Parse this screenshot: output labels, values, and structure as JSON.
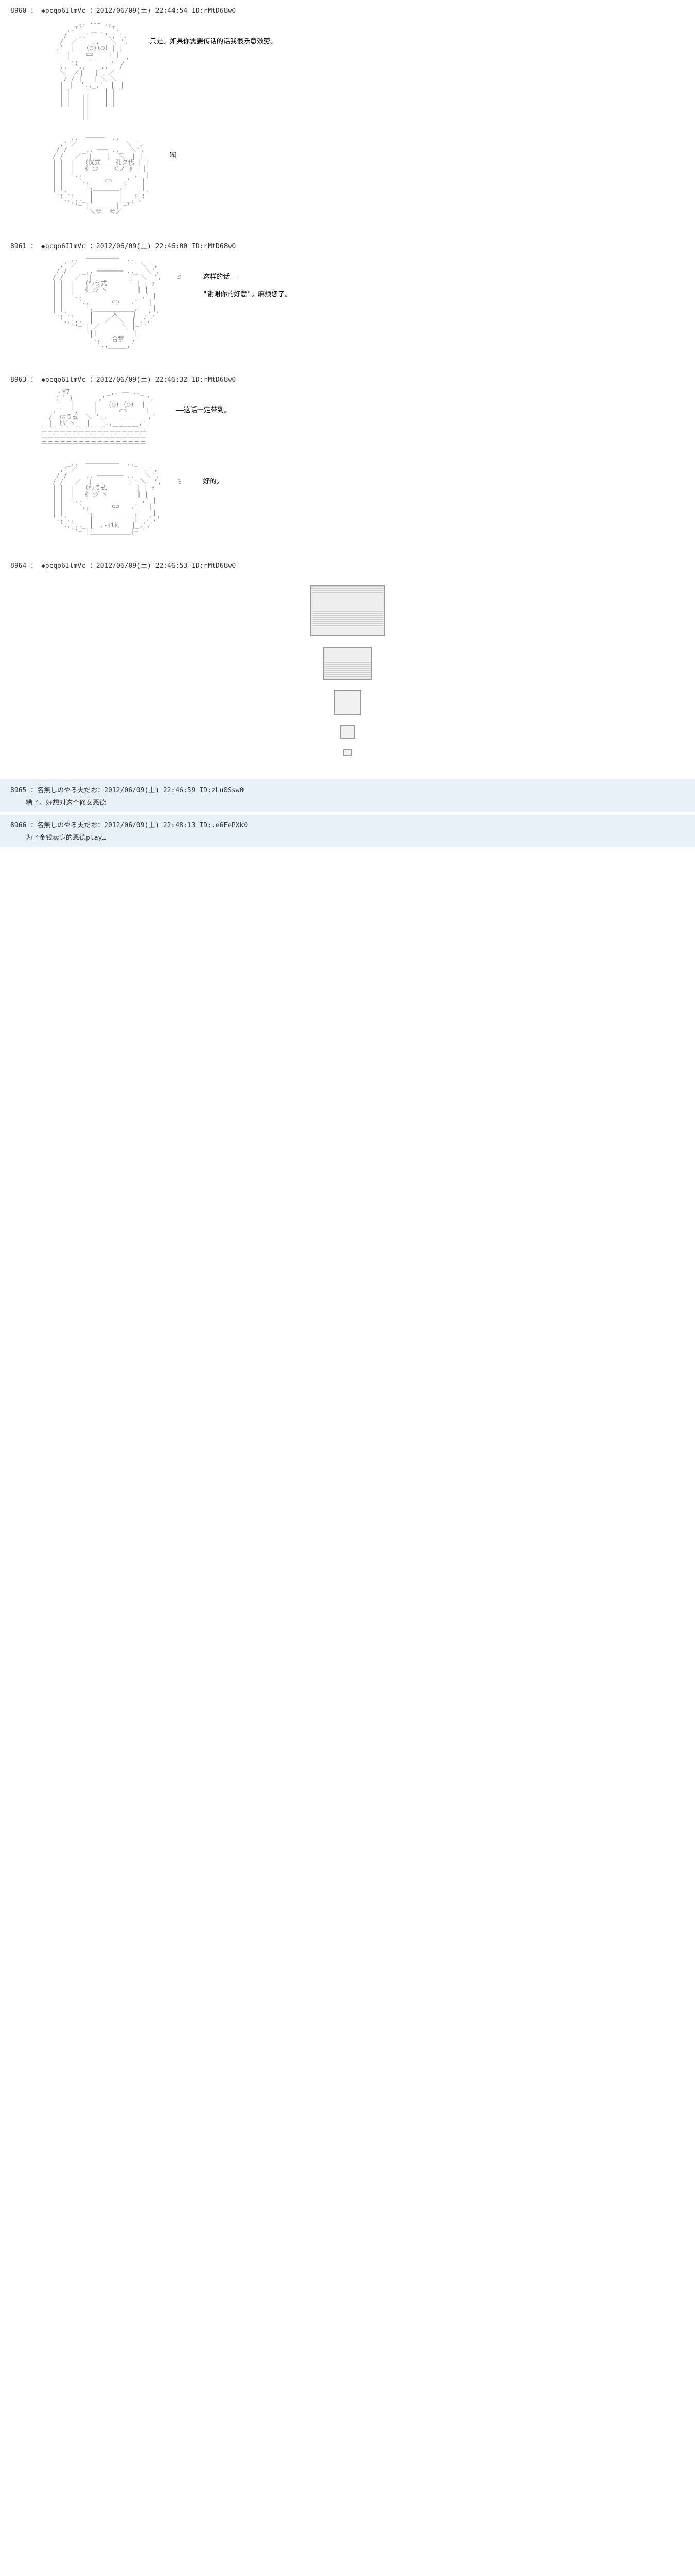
{
  "posts": [
    {
      "id": "8960",
      "header": "8960 ： ◆pcqo6IlmVc ：2012/06/09(土) 22:44:54 ID:rMtD68w0",
      "panels": [
        {
          "ascii_placeholder": "character_a_talking",
          "dialogue": "只是。如果你需要传话的话我很乐意效劳。"
        },
        {
          "ascii_placeholder": "nun_face",
          "dialogue": "啊——"
        }
      ]
    },
    {
      "id": "8961",
      "header": "8961 ： ◆pcqo6IlmVc ：2012/06/09(土) 22:46:00 ID:rMtD68w0",
      "panels": [
        {
          "ascii_placeholder": "nun_praying",
          "dialogue": "这样的话——\n\n\"谢谢你的好意\"。麻烦您了。"
        }
      ]
    },
    {
      "id": "8963",
      "header": "8963 ： ◆pcqo6IlmVc ：2012/06/09(土) 22:46:32 ID:rMtD68w0",
      "panels": [
        {
          "ascii_placeholder": "two_characters",
          "dialogue": "——这话一定带到。"
        },
        {
          "ascii_placeholder": "nun_smiling",
          "dialogue": "好的。"
        }
      ]
    },
    {
      "id": "8964",
      "header": "8964 ： ◆pcqo6IlmVc ：2012/06/09(土) 22:46:53 ID:rMtD68w0",
      "frames": [
        {
          "width": 140,
          "height": 95,
          "lines": true
        },
        {
          "width": 90,
          "height": 60,
          "lines": true
        },
        {
          "width": 50,
          "height": 45,
          "lines": false
        },
        {
          "width": 25,
          "height": 22,
          "lines": false
        },
        {
          "width": 12,
          "height": 10,
          "lines": false
        }
      ]
    }
  ],
  "replies": [
    {
      "header": "8965 ：名無しのやる夫だお：2012/06/09(土) 22:46:59 ID:zLu0Ssw0",
      "text": "糟了。好想对这个修女恶德"
    },
    {
      "header": "8966 ：名無しのやる夫だお：2012/06/09(土) 22:48:13 ID:.e6FePXk0",
      "text": "为了金钱卖身的恶德play…"
    }
  ],
  "ascii_art": {
    "character_a_talking": "         _,. --- .,_\n       ,.'´   _   `'.\n      /   ,.'´  `'., '.\n     /  ／    .,_  ＼ ',\n    ,'  |   (◯)(◯) | |\n    |  |    ⊂⊃    | |\n    |  '.,   ー    ,' ,'\n    '.,  '.,____,.'  /\n     ＼  ／|   |＼ ／\n      /_/ |   | ＼_＼\n     |＿|  '.,_,'  |＿|\n     | |         | |\n     | |   ||    | |\n     |_|   ||    |_|\n           ||\n           ||",
    "nun_face": "       _,.  ─────  .,_\n     ,' ／             ＼ ',\n    / /    _,. ─── .,_  ＼',\n   / /   ／  |    |  ＼  | |\n   | |  |  （忧式    孔ク代 | |\n   | |  |  《 ﾋﾝ    ＜ノ 》| |\n   | |  '.,              ,' |\n   | |    '.,    ⊂⊃   ,'   |\n   | |      ',_______,'    |\n   '.,'.,    |       |   ,','\n     '.,'.,_ |       | _,','\n        `'─ |_______| ─'´\n             ＼兮  兮／",
    "nun_praying": "       _,.  ─────────  .,_\n     ,' ／                 ＼ ',\n    / /    _,. ─────── .,_  ＼',\n   / /   ／  |          |  ＼  ',    ミ\n   | |  |  （ﾊﾂう式        | | ｯ\n   | |  |  《 ﾋｼﾞヽ        | |\n   | |  '.,                ,' |\n   | |    '.,      ⊂⊃   ,'   |\n   | |      ',___________,'   |\n   '.,'.,    |     人    |  ,','\n     '.,'.,_ |   ／  ＼  |_,','\n        `'─ |_／      ＼_|─'´\n             ||          ||\n             '.,   合掌  ,'\n               '.,_____,'",
    "two_characters": "    ・Y7          _,. ── .,_\n   （ ` ）      ,'           ',\n    |   |     |   (◯) (◯)  |\n   ,'   ',    |      ⊂⊃     |\n  /  ﾊﾂう式  ＼ '.,    ___    ,'\n  |  ﾋｼﾞヽ   |   '.,_______,'\n三三三三三三三三三三三三三三三三三\n三三三三三三三三三三三三三三三三三\n三三三三三三三三三三三三三三三三三",
    "nun_smiling": "       _,.  ─────────  .,_\n     ,' ／                 ＼ ',\n    / /    _,. ─────── .,_  ＼',\n   / /   ／  |          |  ＼  ',    ミ\n   | |  |  （ﾊﾂう式        | | ｯ\n   | |  |  《 ﾋｼﾞヽ        | |\n   | |  '.,                ,' |\n   | |    '.,      ⊂⊃   ,'   |\n   | |      ',___________,'   |\n   '.,'.,    |           |  ,','\n     '.,'.,_ |  ､-ｨiﾄ､   |_,','\n        `'─ |___________|─'´"
  }
}
